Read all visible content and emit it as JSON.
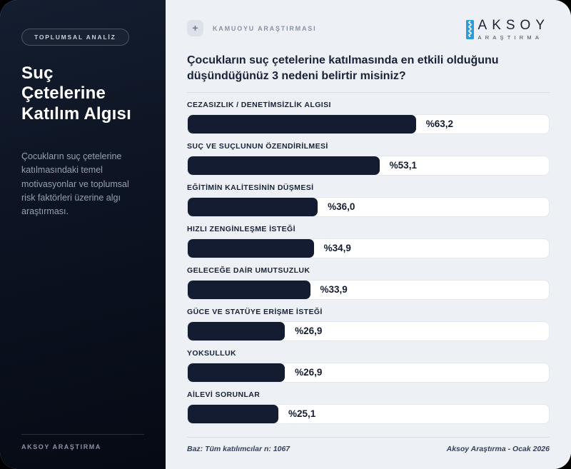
{
  "sidebar": {
    "badge": "TOPLUMSAL ANALİZ",
    "title": "Suç\nÇetelerine\nKatılım Algısı",
    "description": "Çocukların suç çetelerine katılmasındaki temel motivasyonlar ve toplumsal risk faktörleri üzerine algı araştırması.",
    "footer": "AKSOY ARAŞTIRMA"
  },
  "header": {
    "plus_icon": "+",
    "eyebrow": "KAMUOYU ARAŞTIRMASI",
    "logo_name": "AKSOY",
    "logo_sub": "ARAŞTIRMA",
    "logo_accent_color": "#2b9cd8"
  },
  "chart_data": {
    "type": "bar",
    "orientation": "horizontal",
    "title": "Çocukların suç çetelerine katılmasında en etkili olduğunu düşündüğünüz 3 nedeni belirtir misiniz?",
    "categories": [
      "CEZASIZLIK / DENETİMSİZLİK ALGISI",
      "SUÇ VE SUÇLUNUN ÖZENDİRİLMESİ",
      "EĞİTİMİN KALİTESİNİN DÜŞMESİ",
      "HIZLI ZENGİNLEŞME İSTEĞİ",
      "GELECEĞE DAİR UMUTSUZLUK",
      "GÜCE VE STATÜYE ERİŞME İSTEĞİ",
      "YOKSULLUK",
      "AİLEVİ SORUNLAR"
    ],
    "values": [
      63.2,
      53.1,
      36.0,
      34.9,
      33.9,
      26.9,
      26.9,
      25.1
    ],
    "value_labels": [
      "%63,2",
      "%53,1",
      "%36,0",
      "%34,9",
      "%33,9",
      "%26,9",
      "%26,9",
      "%25,1"
    ],
    "xlim": [
      0,
      100
    ],
    "bar_color": "#131c30",
    "track_color": "#ffffff",
    "grid": false,
    "legend": "none"
  },
  "footer": {
    "base_note": "Baz: Tüm katılımcılar n: 1067",
    "source_note": "Aksoy Araştırma - Ocak 2026"
  }
}
